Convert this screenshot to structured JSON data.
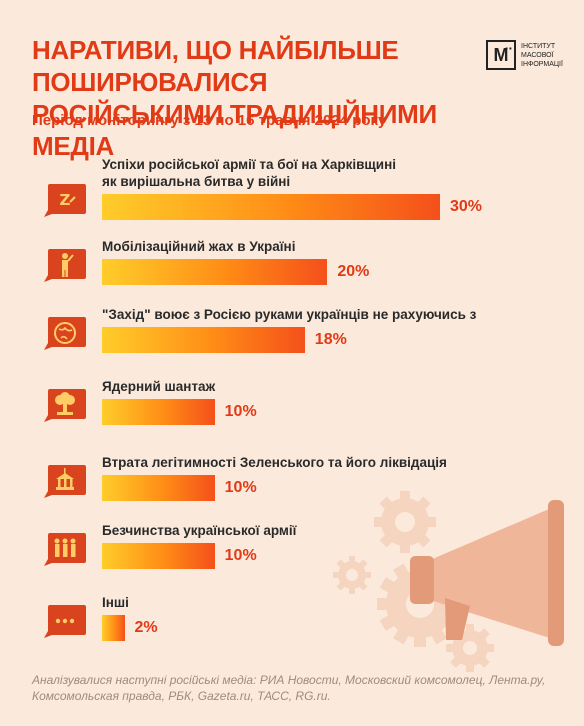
{
  "header": {
    "title_line1": "НАРАТИВИ, ЩО НАЙБІЛЬШЕ ПОШИРЮВАЛИСЯ",
    "title_line2": "РОСІЙСЬКИМИ ТРАДИЦІЙНИМИ МЕДІА",
    "subtitle": "Період моніторингу з 13 по 16 травня 2024 року",
    "logo_mark": "М̈",
    "logo_line1": "ІНСТИТУТ",
    "logo_line2": "МАСОВОЇ",
    "logo_line3": "ІНФОРМАЦІЇ"
  },
  "chart_data": {
    "type": "bar",
    "categories": [
      "Успіхи російської армії та бої на Харківщині як вирішальна битва у війні",
      "Мобілізаційний жах в Україні",
      "\"Захід\" воює з Росією руками українців не рахуючись з втратами",
      "Ядерний шантаж",
      "Втрата легітимності Зеленського та його ліквідація",
      "Безчинства української армії",
      "Інші"
    ],
    "label_lines": [
      [
        "Успіхи російської армії та бої на Харківщині",
        "як вирішальна битва у війні"
      ],
      [
        "Мобілізаційний жах в Україні"
      ],
      [
        "\"Захід\" воює з Росією руками українців не рахуючись з втратами"
      ],
      [
        "Ядерний шантаж"
      ],
      [
        "Втрата легітимності Зеленського та його ліквідація"
      ],
      [
        "Безчинства української армії"
      ],
      [
        "Інші"
      ]
    ],
    "values": [
      30,
      20,
      18,
      10,
      10,
      10,
      2
    ],
    "value_labels": [
      "30%",
      "20%",
      "18%",
      "10%",
      "10%",
      "10%",
      "2%"
    ],
    "icons": [
      "z-icon",
      "soldier-icon",
      "globe-icon",
      "nuclear-cloud-icon",
      "parliament-icon",
      "soldiers-group-icon",
      "ellipsis-icon"
    ],
    "ylim": [
      0,
      30
    ],
    "colors": {
      "bar_start": "#ffcd2a",
      "bar_mid": "#ff8c16",
      "bar_end": "#f4501b",
      "accent": "#e03a17"
    }
  },
  "footer": {
    "line1": "Аналізувалися наступні російські медіа:  РИА Новости, Московский комсомолец, Лента.ру,",
    "line2": "Комсомольская правда, РБК, Gazeta.ru, ТАСС, RG.ru."
  }
}
